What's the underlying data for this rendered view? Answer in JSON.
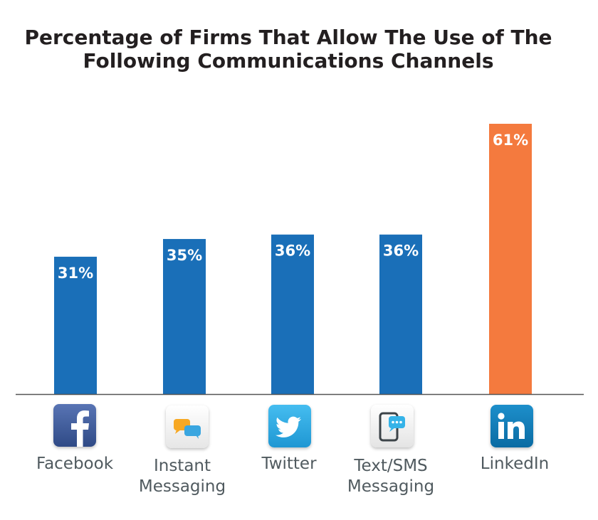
{
  "chart_data": {
    "type": "bar",
    "title_lines": [
      "Percentage of Firms That Allow The Use of The",
      "Following Communications Channels"
    ],
    "categories": [
      "Facebook",
      "Instant Messaging",
      "Twitter",
      "Text/SMS Messaging",
      "LinkedIn"
    ],
    "category_label_lines": [
      [
        "Facebook"
      ],
      [
        "Instant",
        "Messaging"
      ],
      [
        "Twitter"
      ],
      [
        "Text/SMS",
        "Messaging"
      ],
      [
        "LinkedIn"
      ]
    ],
    "values": [
      31,
      35,
      36,
      36,
      61
    ],
    "data_labels": [
      "31%",
      "35%",
      "36%",
      "36%",
      "61%"
    ],
    "bar_colors": [
      "#1a6fb8",
      "#1a6fb8",
      "#1a6fb8",
      "#1a6fb8",
      "#f47a3e"
    ],
    "xlabel": "",
    "ylabel": "",
    "grid": false,
    "legend": "none"
  },
  "icons": [
    "facebook-icon",
    "instant-messaging-icon",
    "twitter-icon",
    "sms-phone-icon",
    "linkedin-icon"
  ],
  "colors": {
    "bar": "#1a6fb8",
    "highlight": "#f47a3e",
    "baseline": "#555555",
    "facebook": "#3b5998",
    "twitter": "#29a9e1",
    "linkedin": "#0f7ab5",
    "label": "#505a5f"
  }
}
